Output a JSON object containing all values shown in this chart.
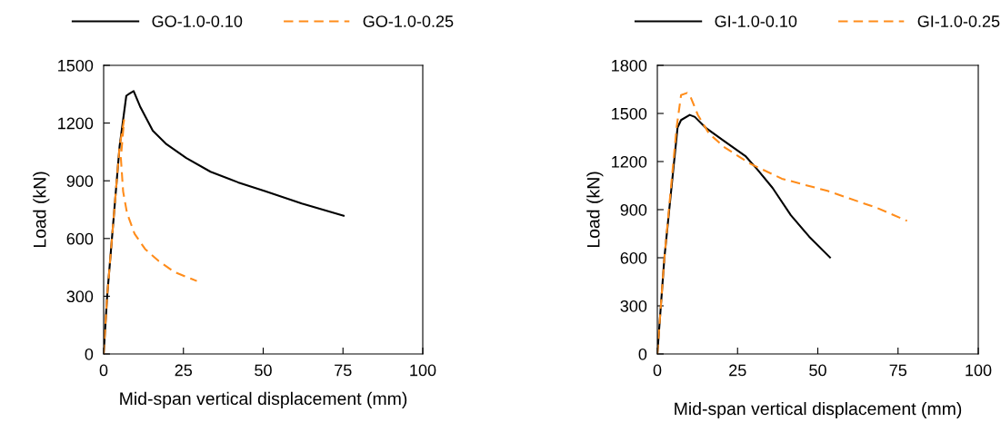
{
  "chart_data": [
    {
      "type": "line",
      "xlabel": "Mid-span vertical displacement (mm)",
      "ylabel": "Load (kN)",
      "xlim": [
        0,
        100
      ],
      "xticks": [
        0,
        25,
        50,
        75,
        100
      ],
      "ylim": [
        0,
        1500
      ],
      "yticks": [
        0,
        300,
        600,
        900,
        1200,
        1500
      ],
      "grid": false,
      "legend": "top",
      "series": [
        {
          "name": "GO-1.0-0.10",
          "color": "#000000",
          "line_style": "solid",
          "x": [
            0,
            1.1,
            5,
            7.1,
            8.1,
            9.4,
            11.4,
            15.4,
            19.7,
            25.9,
            33.5,
            42.1,
            50.7,
            62.1,
            75.2
          ],
          "values": [
            0,
            300,
            1080,
            1342,
            1353,
            1366,
            1287,
            1160,
            1090,
            1018,
            947,
            892,
            845,
            782,
            718
          ]
        },
        {
          "name": "GO-1.0-0.25",
          "color": "#ff8c1a",
          "line_style": "dashed",
          "x": [
            0,
            1.1,
            5,
            6.4,
            5.4,
            6.1,
            7.3,
            9.7,
            13,
            17.3,
            22.1,
            29.2
          ],
          "values": [
            0,
            300,
            1080,
            1216,
            1018,
            845,
            734,
            624,
            545,
            482,
            426,
            379
          ]
        }
      ]
    },
    {
      "type": "line",
      "xlabel": "Mid-span vertical displacement (mm)",
      "ylabel": "Load (kN)",
      "xlim": [
        0,
        100
      ],
      "xticks": [
        0,
        25,
        50,
        75,
        100
      ],
      "ylim": [
        0,
        1800
      ],
      "yticks": [
        0,
        300,
        600,
        900,
        1200,
        1500,
        1800
      ],
      "grid": false,
      "legend": "top",
      "series": [
        {
          "name": "GI-1.0-0.10",
          "color": "#000000",
          "line_style": "solid",
          "x": [
            0,
            2.2,
            6.3,
            7.4,
            10.1,
            11.7,
            15,
            20.7,
            27.4,
            31.2,
            35.9,
            41.6,
            47.3,
            53.8
          ],
          "values": [
            0,
            600,
            1412,
            1459,
            1491,
            1478,
            1412,
            1330,
            1235,
            1150,
            1036,
            865,
            732,
            602
          ]
        },
        {
          "name": "GI-1.0-0.25",
          "color": "#ff8c1a",
          "line_style": "dashed",
          "x": [
            0,
            2.2,
            6,
            7.4,
            9.3,
            10.3,
            12.6,
            16,
            20.7,
            28.8,
            38.8,
            53,
            68.3,
            77.8
          ],
          "values": [
            0,
            600,
            1412,
            1615,
            1628,
            1606,
            1492,
            1377,
            1292,
            1188,
            1093,
            1017,
            912,
            830
          ]
        }
      ]
    }
  ]
}
